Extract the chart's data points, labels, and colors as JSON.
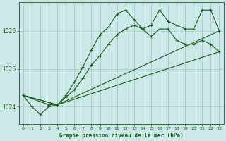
{
  "title": "Graphe pression niveau de la mer (hPa)",
  "bg_color": "#cce8e8",
  "grid_color": "#aacccc",
  "line_color": "#1a5c1a",
  "ylim": [
    1023.55,
    1026.75
  ],
  "yticks": [
    1024,
    1025,
    1026
  ],
  "xlim": [
    -0.5,
    23.5
  ],
  "xticks": [
    0,
    1,
    2,
    3,
    4,
    5,
    6,
    7,
    8,
    9,
    10,
    11,
    12,
    13,
    14,
    15,
    16,
    17,
    18,
    19,
    20,
    21,
    22,
    23
  ],
  "line1_x": [
    0,
    1,
    2,
    3,
    4,
    5,
    6,
    7,
    8,
    9,
    10,
    11,
    12,
    13,
    14,
    15,
    16,
    17,
    18,
    19,
    20,
    21,
    22,
    23
  ],
  "line1_y": [
    1024.3,
    1024.0,
    1023.8,
    1024.0,
    1024.05,
    1024.3,
    1024.65,
    1025.05,
    1025.5,
    1025.9,
    1026.1,
    1026.45,
    1026.55,
    1026.3,
    1026.05,
    1026.15,
    1026.55,
    1026.25,
    1026.15,
    1026.05,
    1026.05,
    1026.55,
    1026.55,
    1026.0
  ],
  "line2_x": [
    0,
    3,
    4,
    5,
    6,
    7,
    8,
    9,
    10,
    11,
    12,
    13,
    14,
    15,
    16,
    17,
    18,
    19,
    20,
    21,
    22,
    23
  ],
  "line2_y": [
    1024.3,
    1024.05,
    1024.05,
    1024.25,
    1024.45,
    1024.75,
    1025.1,
    1025.35,
    1025.65,
    1025.9,
    1026.05,
    1026.15,
    1026.05,
    1025.85,
    1026.05,
    1026.05,
    1025.75,
    1025.65,
    1025.65,
    1025.75,
    1025.65,
    1025.45
  ],
  "line3_x": [
    0,
    4,
    23
  ],
  "line3_y": [
    1024.3,
    1024.05,
    1026.0
  ],
  "line4_x": [
    0,
    4,
    23
  ],
  "line4_y": [
    1024.3,
    1024.05,
    1025.45
  ]
}
